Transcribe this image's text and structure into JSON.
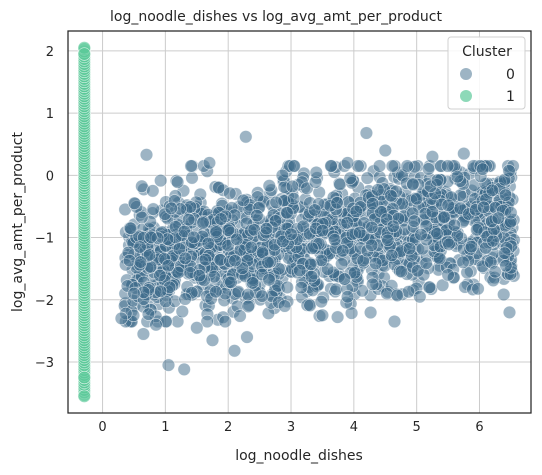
{
  "chart_data": {
    "type": "scatter",
    "title": "log_noodle_dishes vs log_avg_amt_per_product",
    "xlabel": "log_noodle_dishes",
    "ylabel": "log_avg_amt_per_product",
    "xlim": [
      -0.55,
      6.82
    ],
    "ylim": [
      -3.82,
      2.32
    ],
    "xticks": [
      0,
      1,
      2,
      3,
      4,
      5,
      6
    ],
    "yticks": [
      -3,
      -2,
      -1,
      0,
      1,
      2
    ],
    "grid": true,
    "legend": {
      "title": "Cluster",
      "placement": "top-right",
      "entries": [
        {
          "label": "0",
          "color": "#3b6a8a"
        },
        {
          "label": "1",
          "color": "#5cc99a"
        }
      ]
    },
    "series": [
      {
        "name": "0",
        "color": "#3b6a8a",
        "cloud": {
          "x_range": [
            0.35,
            6.55
          ],
          "y_center": -1.05,
          "y_spread": 0.55,
          "count": 1500
        },
        "column": {
          "x": -0.29,
          "y_range": [
            -3.0,
            1.4
          ],
          "count": 120
        },
        "points": [
          [
            0.7,
            0.33
          ],
          [
            1.7,
            0.2
          ],
          [
            2.28,
            0.62
          ],
          [
            4.2,
            0.68
          ],
          [
            4.5,
            0.4
          ],
          [
            5.75,
            0.35
          ],
          [
            4.85,
            0.15
          ],
          [
            3.9,
            0.2
          ],
          [
            3.05,
            0.15
          ],
          [
            0.3,
            -2.3
          ],
          [
            0.65,
            -2.55
          ],
          [
            1.05,
            -3.05
          ],
          [
            1.3,
            -3.12
          ],
          [
            2.1,
            -2.82
          ],
          [
            1.5,
            -2.45
          ],
          [
            1.75,
            -2.65
          ],
          [
            0.85,
            -2.4
          ],
          [
            2.3,
            -2.6
          ],
          [
            6.4,
            -1.25
          ],
          [
            6.25,
            -1.55
          ],
          [
            6.5,
            -0.6
          ],
          [
            6.05,
            0.1
          ],
          [
            5.25,
            0.3
          ],
          [
            0.45,
            -0.85
          ],
          [
            0.8,
            -0.25
          ],
          [
            3.9,
            -1.95
          ],
          [
            4.3,
            -1.75
          ],
          [
            3.5,
            -2.25
          ],
          [
            5.05,
            -1.95
          ],
          [
            0.5,
            -1.9
          ],
          [
            5.5,
            -1.6
          ],
          [
            2.9,
            -2.1
          ]
        ]
      },
      {
        "name": "1",
        "color": "#5cc99a",
        "column": {
          "x": -0.29,
          "y_range": [
            -3.55,
            2.05
          ],
          "count": 140
        },
        "points": [
          [
            -0.29,
            -3.25
          ],
          [
            -0.29,
            -3.55
          ],
          [
            -0.29,
            2.05
          ],
          [
            -0.29,
            1.95
          ]
        ]
      }
    ]
  }
}
